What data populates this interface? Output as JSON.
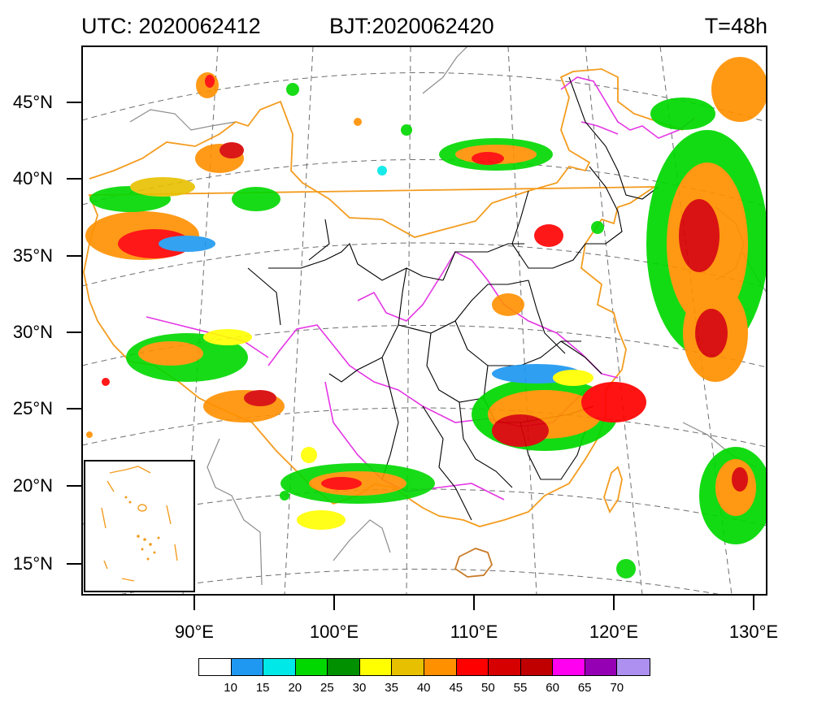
{
  "header": {
    "utc": "UTC: 2020062412",
    "bjt": "BJT:2020062420",
    "lead_time": "T=48h"
  },
  "map": {
    "lat_labels": [
      "45°N",
      "40°N",
      "35°N",
      "30°N",
      "25°N",
      "20°N",
      "15°N"
    ],
    "lon_labels": [
      "90°E",
      "100°E",
      "110°E",
      "120°E",
      "130°E"
    ],
    "border_colors": {
      "country": "#f39c1f",
      "river": "#e437e4",
      "province": "#000000",
      "coast_other": "#808080",
      "graticule": "#6e6e6e"
    }
  },
  "colorbar": {
    "colors": [
      "#ffffff",
      "#1e98f0",
      "#00e8e8",
      "#00d800",
      "#009000",
      "#ffff00",
      "#e7c000",
      "#ff9000",
      "#ff0000",
      "#d60000",
      "#c00000",
      "#ff00f0",
      "#9600b4",
      "#ad90f0"
    ],
    "labels": [
      "10",
      "15",
      "20",
      "25",
      "30",
      "35",
      "40",
      "45",
      "50",
      "55",
      "60",
      "65",
      "70"
    ]
  }
}
